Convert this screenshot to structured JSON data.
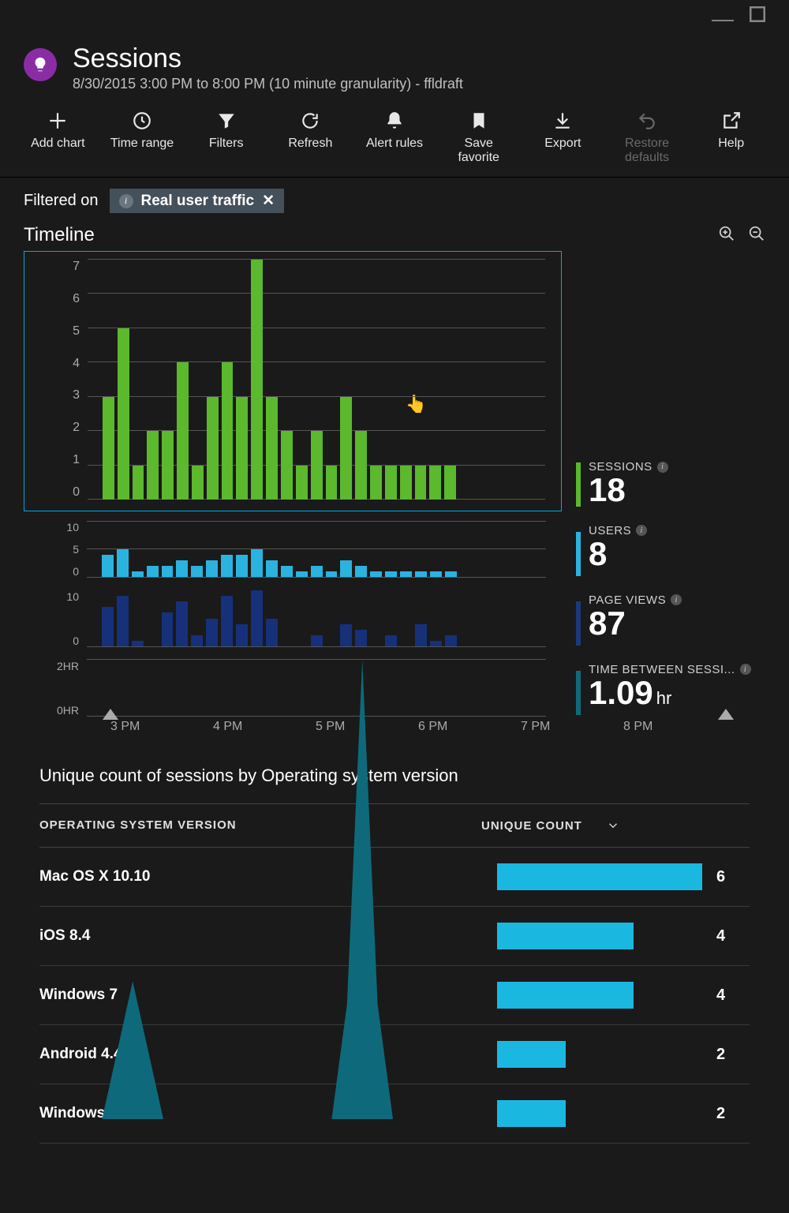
{
  "colors": {
    "background": "#1a1a1a",
    "text": "#ffffff",
    "muted": "#aaaaaa",
    "accentPurple": "#8a2da5",
    "chartBorder": "#00a8e8",
    "barGreen": "#5cb82c",
    "barCyan": "#2bb3e0",
    "barNavy": "#16307a",
    "areaTeal": "#0e6a7a",
    "tableBar": "#1ab8e0",
    "filterTagBg": "#44505a",
    "gridLine": "#555555"
  },
  "header": {
    "title": "Sessions",
    "subtitle": "8/30/2015 3:00 PM to 8:00 PM (10 minute granularity) - ffldraft"
  },
  "toolbar": [
    {
      "id": "add-chart",
      "label": "Add chart",
      "icon": "plus",
      "enabled": true
    },
    {
      "id": "time-range",
      "label": "Time range",
      "icon": "clock",
      "enabled": true
    },
    {
      "id": "filters",
      "label": "Filters",
      "icon": "funnel",
      "enabled": true
    },
    {
      "id": "refresh",
      "label": "Refresh",
      "icon": "refresh",
      "enabled": true
    },
    {
      "id": "alert-rules",
      "label": "Alert rules",
      "icon": "bell",
      "enabled": true
    },
    {
      "id": "save-favorite",
      "label": "Save favorite",
      "icon": "bookmark",
      "enabled": true
    },
    {
      "id": "export",
      "label": "Export",
      "icon": "download",
      "enabled": true
    },
    {
      "id": "restore-defaults",
      "label": "Restore defaults",
      "icon": "undo",
      "enabled": false
    },
    {
      "id": "help",
      "label": "Help",
      "icon": "popout",
      "enabled": true
    }
  ],
  "filter": {
    "label": "Filtered on",
    "tag": "Real user traffic"
  },
  "timeline": {
    "title": "Timeline",
    "xTicks": [
      "3 PM",
      "4 PM",
      "5 PM",
      "6 PM",
      "7 PM",
      "8 PM"
    ],
    "main": {
      "type": "bar",
      "color": "#5cb82c",
      "ylim": [
        0,
        7
      ],
      "yticks": [
        0,
        1,
        2,
        3,
        4,
        5,
        6,
        7
      ],
      "values": [
        0,
        3,
        5,
        1,
        2,
        2,
        4,
        1,
        3,
        4,
        3,
        7,
        3,
        2,
        1,
        2,
        1,
        3,
        2,
        1,
        1,
        1,
        1,
        1,
        1,
        0,
        0,
        0,
        0,
        0,
        0
      ]
    },
    "mini": [
      {
        "type": "bar",
        "color": "#2bb3e0",
        "ylim": [
          0,
          10
        ],
        "yticks": [
          0,
          5,
          10
        ],
        "values": [
          0,
          4,
          5,
          1,
          2,
          2,
          3,
          2,
          3,
          4,
          4,
          5,
          3,
          2,
          1,
          2,
          1,
          3,
          2,
          1,
          1,
          1,
          1,
          1,
          1,
          0,
          0,
          0,
          0,
          0,
          0
        ]
      },
      {
        "type": "bar",
        "color": "#16307a",
        "ylim": [
          0,
          10
        ],
        "yticks": [
          0,
          10
        ],
        "values": [
          0,
          7,
          9,
          1,
          0,
          6,
          8,
          2,
          5,
          9,
          4,
          11,
          5,
          0,
          0,
          2,
          0,
          4,
          3,
          0,
          2,
          0,
          4,
          1,
          2,
          0,
          0,
          0,
          0,
          0,
          0
        ]
      },
      {
        "type": "area",
        "color": "#0e6a7a",
        "ylim": [
          0,
          2
        ],
        "yticks": [
          "0HR",
          "2HR"
        ],
        "values": [
          0,
          0,
          0.3,
          0.6,
          0.3,
          0,
          0,
          0,
          0,
          0,
          0,
          0,
          0,
          0,
          0,
          0,
          0,
          0.5,
          2,
          0.5,
          0,
          0,
          0,
          0,
          0,
          0,
          0,
          0,
          0,
          0,
          0
        ]
      }
    ],
    "stats": [
      {
        "label": "SESSIONS",
        "value": "18",
        "unit": "",
        "color": "green"
      },
      {
        "label": "USERS",
        "value": "8",
        "unit": "",
        "color": "cyan"
      },
      {
        "label": "PAGE VIEWS",
        "value": "87",
        "unit": "",
        "color": "navy"
      },
      {
        "label": "TIME BETWEEN SESSI...",
        "value": "1.09",
        "unit": "hr",
        "color": "teal"
      }
    ]
  },
  "osTable": {
    "title": "Unique count of sessions by Operating system version",
    "columns": [
      "OPERATING SYSTEM VERSION",
      "UNIQUE COUNT"
    ],
    "maxValue": 6,
    "barColor": "#1ab8e0",
    "rows": [
      {
        "name": "Mac OS X 10.10",
        "count": 6
      },
      {
        "name": "iOS 8.4",
        "count": 4
      },
      {
        "name": "Windows 7",
        "count": 4
      },
      {
        "name": "Android 4.4",
        "count": 2
      },
      {
        "name": "Windows 10",
        "count": 2
      }
    ]
  }
}
